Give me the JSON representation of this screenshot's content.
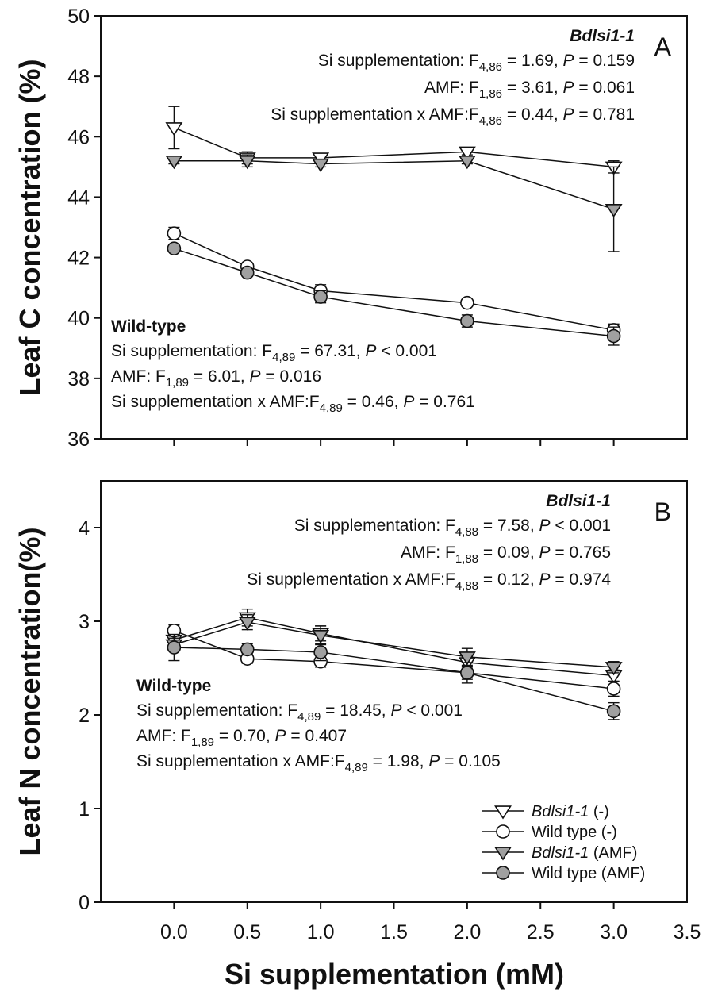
{
  "chart_data": [
    {
      "type": "line",
      "panel_label": "A",
      "ylabel": "Leaf C concentration (%)",
      "ylim": [
        36,
        50
      ],
      "yticks": [
        36,
        38,
        40,
        42,
        44,
        46,
        48,
        50
      ],
      "xlim": [
        -0.5,
        3.5
      ],
      "x": [
        0.0,
        0.5,
        1.0,
        2.0,
        3.0
      ],
      "series": [
        {
          "id": "bdlsi1-ctrl",
          "values": [
            46.3,
            45.3,
            45.3,
            45.5,
            45.0
          ],
          "err": [
            0.7,
            0.2,
            0.1,
            0.1,
            0.2
          ],
          "marker": "tri-down",
          "fill": "#ffffff"
        },
        {
          "id": "wt-ctrl",
          "values": [
            42.8,
            41.7,
            40.9,
            40.5,
            39.6
          ],
          "err": [
            0.2,
            0.1,
            0.2,
            0.1,
            0.2
          ],
          "marker": "circle",
          "fill": "#ffffff"
        },
        {
          "id": "bdlsi1-amf",
          "values": [
            45.2,
            45.2,
            45.1,
            45.2,
            43.6
          ],
          "err": [
            0.1,
            0.2,
            0.1,
            0.1,
            1.4
          ],
          "marker": "tri-down",
          "fill": "#a0a0a0"
        },
        {
          "id": "wt-amf",
          "values": [
            42.3,
            41.5,
            40.7,
            39.9,
            39.4
          ],
          "err": [
            0.1,
            0.1,
            0.2,
            0.2,
            0.3
          ],
          "marker": "circle",
          "fill": "#a0a0a0"
        }
      ],
      "annotations": {
        "mutant": {
          "heading": "Bdlsi1-1",
          "lines": [
            {
              "pre": "Si supplementation: F",
              "sub": "4,86",
              "mid": " = 1.69, ",
              "p": "P",
              "post": " = 0.159"
            },
            {
              "pre": "AMF: F",
              "sub": "1,86",
              "mid": " = 3.61, ",
              "p": "P",
              "post": " = 0.061"
            },
            {
              "pre": "Si supplementation x AMF:F",
              "sub": "4,86",
              "mid": " = 0.44, ",
              "p": "P",
              "post": " = 0.781"
            }
          ]
        },
        "wildtype": {
          "heading": "Wild-type",
          "lines": [
            {
              "pre": "Si supplementation: F",
              "sub": "4,89",
              "mid": " = 67.31, ",
              "p": "P",
              "post": " < 0.001"
            },
            {
              "pre": "AMF: F",
              "sub": "1,89",
              "mid": " = 6.01, ",
              "p": "P",
              "post": " = 0.016"
            },
            {
              "pre": "Si supplementation x AMF:F",
              "sub": "4,89",
              "mid": " = 0.46, ",
              "p": "P",
              "post": " = 0.761"
            }
          ]
        }
      }
    },
    {
      "type": "line",
      "panel_label": "B",
      "ylabel": "Leaf N concentration(%)",
      "ylim": [
        0,
        4.5
      ],
      "yticks": [
        0,
        1,
        2,
        3,
        4
      ],
      "xlim": [
        -0.5,
        3.5
      ],
      "x": [
        0.0,
        0.5,
        1.0,
        2.0,
        3.0
      ],
      "xticks": [
        "0.0",
        "0.5",
        "1.0",
        "1.5",
        "2.0",
        "2.5",
        "3.0",
        "3.5"
      ],
      "xlabel": "Si supplementation (mM)",
      "series": [
        {
          "id": "bdlsi1-ctrl",
          "values": [
            2.8,
            3.04,
            2.87,
            2.56,
            2.42
          ],
          "err": [
            0.06,
            0.09,
            0.08,
            0.06,
            0.06
          ],
          "marker": "tri-down",
          "fill": "#ffffff"
        },
        {
          "id": "wt-ctrl",
          "values": [
            2.9,
            2.6,
            2.57,
            2.45,
            2.28
          ],
          "err": [
            0.06,
            0.05,
            0.06,
            0.07,
            0.08
          ],
          "marker": "circle",
          "fill": "#ffffff"
        },
        {
          "id": "bdlsi1-amf",
          "values": [
            2.75,
            2.99,
            2.85,
            2.62,
            2.51
          ],
          "err": [
            0.07,
            0.08,
            0.1,
            0.09,
            0.06
          ],
          "marker": "tri-down",
          "fill": "#a0a0a0"
        },
        {
          "id": "wt-amf",
          "values": [
            2.72,
            2.7,
            2.67,
            2.45,
            2.04
          ],
          "err": [
            0.14,
            0.06,
            0.09,
            0.11,
            0.09
          ],
          "marker": "circle",
          "fill": "#a0a0a0"
        }
      ],
      "annotations": {
        "mutant": {
          "heading": "Bdlsi1-1",
          "lines": [
            {
              "pre": "Si supplementation: F",
              "sub": "4,88",
              "mid": " = 7.58, ",
              "p": "P",
              "post": " < 0.001"
            },
            {
              "pre": "AMF: F",
              "sub": "1,88",
              "mid": " = 0.09, ",
              "p": "P",
              "post": " = 0.765"
            },
            {
              "pre": "Si supplementation x AMF:F",
              "sub": "4,88",
              "mid": " = 0.12, ",
              "p": "P",
              "post": " = 0.974"
            }
          ]
        },
        "wildtype": {
          "heading": "Wild-type",
          "lines": [
            {
              "pre": "Si supplementation: F",
              "sub": "4,89",
              "mid": " = 18.45, ",
              "p": "P",
              "post": " < 0.001"
            },
            {
              "pre": "AMF: F",
              "sub": "1,89",
              "mid": " = 0.70, ",
              "p": "P",
              "post": " = 0.407"
            },
            {
              "pre": "Si supplementation x AMF:F",
              "sub": "4,89",
              "mid": " = 1.98, ",
              "p": "P",
              "post": " = 0.105"
            }
          ]
        }
      },
      "legend": {
        "position": "lower-right",
        "entries": [
          {
            "series": "bdlsi1-ctrl",
            "italic": "Bdlsi1-1",
            "rest": " (-)"
          },
          {
            "series": "wt-ctrl",
            "italic": "",
            "rest": "Wild type (-)"
          },
          {
            "series": "bdlsi1-amf",
            "italic": "Bdlsi1-1",
            "rest": " (AMF)"
          },
          {
            "series": "wt-amf",
            "italic": "",
            "rest": "Wild type (AMF)"
          }
        ]
      }
    }
  ]
}
